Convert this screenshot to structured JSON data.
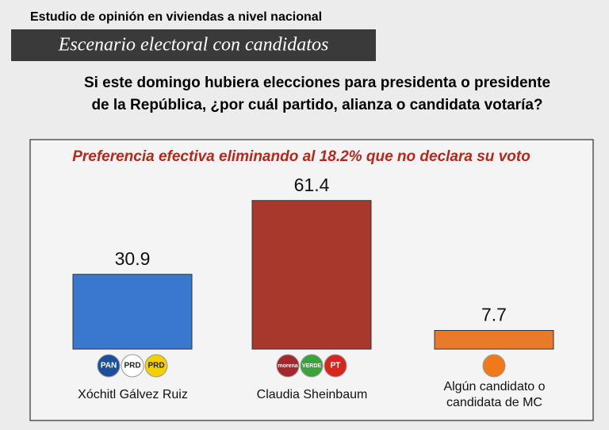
{
  "header": "Estudio de opinión en viviendas a nivel nacional",
  "banner": "Escenario electoral con candidatos",
  "question": [
    "Si este domingo hubiera elecciones para presidenta o presidente",
    "de la República, ¿por cuál partido, alianza o candidata votaría?"
  ],
  "chart_data": {
    "type": "bar",
    "annotation": "Preferencia efectiva eliminando al 18.2% que no declara su voto",
    "categories": [
      "Xóchitl Gálvez Ruiz",
      "Claudia Sheinbaum",
      "Algún candidato o candidata de MC"
    ],
    "values": [
      30.9,
      61.4,
      7.7
    ],
    "colors": [
      "#3a78d0",
      "#a8382c",
      "#e87a2a"
    ],
    "logos": [
      [
        {
          "label": "PAN",
          "color": "#1b4f9c"
        },
        {
          "label": "PRD",
          "color": "#ffffff"
        },
        {
          "label": "PRD",
          "color": "#f5d000"
        }
      ],
      [
        {
          "label": "morena",
          "color": "#a3282b"
        },
        {
          "label": "VERDE",
          "color": "#3aa33a"
        },
        {
          "label": "PT",
          "color": "#d7261e"
        }
      ],
      [
        {
          "color": "#f07a1a"
        }
      ]
    ]
  }
}
